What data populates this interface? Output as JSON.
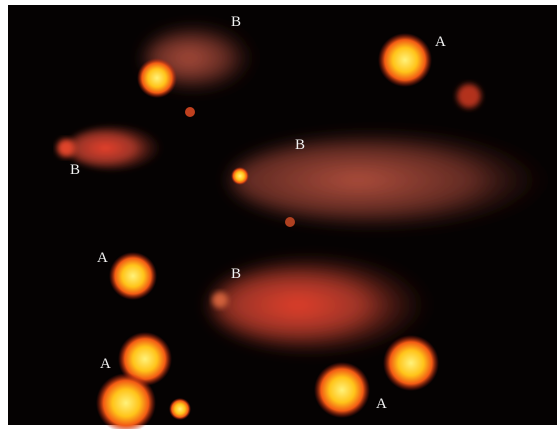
{
  "labels": [
    "B",
    "A",
    "B",
    "B",
    "A",
    "B",
    "A",
    "A"
  ]
}
